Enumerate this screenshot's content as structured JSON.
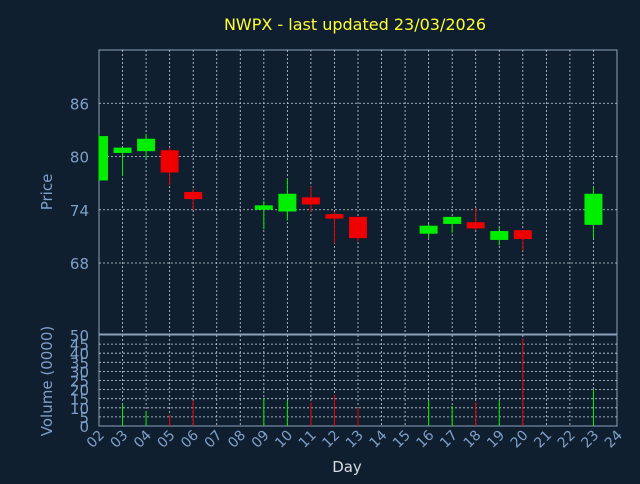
{
  "chart_data": {
    "type": "candlestick",
    "title": "NWPX - last updated 23/03/2026",
    "xlabel": "Day",
    "price_panel": {
      "ylabel": "Price",
      "ylim": [
        60,
        92
      ],
      "yticks": [
        68,
        74,
        80,
        86
      ],
      "grid": true
    },
    "volume_panel": {
      "ylabel": "Volume (0000)",
      "ylim": [
        0,
        50
      ],
      "yticks": [
        0,
        5,
        10,
        15,
        20,
        25,
        30,
        35,
        40,
        45,
        50
      ],
      "grid": true
    },
    "x_ticks": [
      "02",
      "03",
      "04",
      "05",
      "06",
      "07",
      "08",
      "09",
      "10",
      "11",
      "12",
      "13",
      "14",
      "15",
      "16",
      "17",
      "18",
      "19",
      "20",
      "21",
      "22",
      "23",
      "24"
    ],
    "x_range": [
      2,
      24
    ],
    "candles": [
      {
        "day": 2,
        "open": 77.3,
        "high": 82.5,
        "low": 77.3,
        "close": 82.3,
        "volume": 0
      },
      {
        "day": 3,
        "open": 80.4,
        "high": 81.0,
        "low": 77.8,
        "close": 81.0,
        "volume": 12
      },
      {
        "day": 4,
        "open": 80.6,
        "high": 82.5,
        "low": 79.8,
        "close": 82.0,
        "volume": 8
      },
      {
        "day": 5,
        "open": 80.7,
        "high": 81.0,
        "low": 76.8,
        "close": 78.2,
        "volume": 6
      },
      {
        "day": 6,
        "open": 76.0,
        "high": 76.3,
        "low": 74.0,
        "close": 75.2,
        "volume": 14
      },
      {
        "day": 9,
        "open": 74.0,
        "high": 75.0,
        "low": 71.8,
        "close": 74.5,
        "volume": 15
      },
      {
        "day": 10,
        "open": 73.8,
        "high": 77.5,
        "low": 72.8,
        "close": 75.8,
        "volume": 14
      },
      {
        "day": 11,
        "open": 75.4,
        "high": 76.6,
        "low": 73.8,
        "close": 74.6,
        "volume": 13
      },
      {
        "day": 12,
        "open": 73.5,
        "high": 73.8,
        "low": 70.2,
        "close": 73.0,
        "volume": 17
      },
      {
        "day": 13,
        "open": 73.2,
        "high": 73.2,
        "low": 70.5,
        "close": 70.8,
        "volume": 10
      },
      {
        "day": 16,
        "open": 71.3,
        "high": 72.4,
        "low": 70.8,
        "close": 72.2,
        "volume": 14
      },
      {
        "day": 17,
        "open": 72.4,
        "high": 73.2,
        "low": 71.4,
        "close": 73.2,
        "volume": 11
      },
      {
        "day": 18,
        "open": 72.6,
        "high": 74.2,
        "low": 71.7,
        "close": 71.9,
        "volume": 13
      },
      {
        "day": 19,
        "open": 70.6,
        "high": 72.0,
        "low": 70.0,
        "close": 71.6,
        "volume": 14
      },
      {
        "day": 20,
        "open": 71.7,
        "high": 71.7,
        "low": 69.4,
        "close": 70.7,
        "volume": 48
      },
      {
        "day": 23,
        "open": 72.3,
        "high": 76.6,
        "low": 70.8,
        "close": 75.8,
        "volume": 20
      }
    ],
    "colors": {
      "background": "#0f1f30",
      "up": "#00ee00",
      "down": "#ee0000",
      "title": "#ffff33",
      "axis_text": "#7fa0c8",
      "frame": "#8da0b8",
      "grid": "#c8d0d8"
    }
  }
}
